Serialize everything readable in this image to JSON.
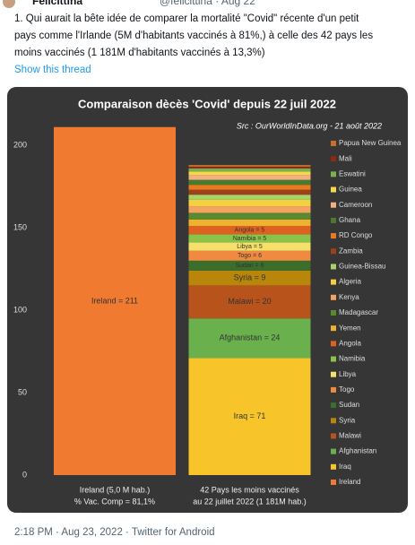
{
  "header": {
    "name": "Felicittina",
    "handle": "@felicittina · Aug 22"
  },
  "tweet": {
    "lines": [
      "1. Qui aurait la bête idée de comparer la mortalité \"Covid\" récente d'un petit",
      "pays comme l'Irlande (5M d'habitants vaccinés à 81%,) à celle des 42 pays les",
      "moins vaccinés (1 181M d'habitants vaccinés à 13,3%)"
    ],
    "thread_link": "Show this thread"
  },
  "chart_data": {
    "type": "stacked_bar",
    "title": "Comparaison dècès 'Covid' depuis 22 juil 2022",
    "subtitle": "Src : OurWorldInData.org - 21 août 2022",
    "categories": [
      [
        "Ireland (5,0 M hab.)",
        "% Vac. Comp = 81,1%"
      ],
      [
        "42 Pays les moins vaccinés",
        "au 22 juillet 2022 (1 181M hab.)"
      ]
    ],
    "ylim": [
      0,
      220
    ],
    "yticks": [
      0,
      50,
      100,
      150,
      200
    ],
    "grid": false,
    "legend": "right",
    "series": [
      {
        "name": "Ireland",
        "color": "#f07a30",
        "values": [
          211,
          null
        ],
        "value_labels": [
          "Ireland = 211",
          null
        ]
      },
      {
        "name": "Iraq",
        "color": "#f7c52a",
        "values": [
          null,
          71
        ],
        "value_labels": [
          null,
          "Iraq = 71"
        ]
      },
      {
        "name": "Afghanistan",
        "color": "#6ab04c",
        "values": [
          null,
          24
        ],
        "value_labels": [
          null,
          "Afghanistan = 24"
        ]
      },
      {
        "name": "Malawi",
        "color": "#b9531c",
        "values": [
          null,
          20
        ],
        "value_labels": [
          null,
          "Malawi = 20"
        ]
      },
      {
        "name": "Syria",
        "color": "#b8860b",
        "values": [
          null,
          9
        ],
        "value_labels": [
          null,
          "Syria = 9"
        ]
      },
      {
        "name": "Sudan",
        "color": "#3b6e2a",
        "values": [
          null,
          6
        ],
        "value_labels": [
          null,
          "Sudan = 6"
        ]
      },
      {
        "name": "Togo",
        "color": "#f08a40",
        "values": [
          null,
          6
        ],
        "value_labels": [
          null,
          "Togo = 6"
        ]
      },
      {
        "name": "Libya",
        "color": "#f7e06a",
        "values": [
          null,
          5
        ],
        "value_labels": [
          null,
          "Libya = 5"
        ]
      },
      {
        "name": "Namibia",
        "color": "#8bc34a",
        "values": [
          null,
          5
        ],
        "value_labels": [
          null,
          "Namibia = 5"
        ]
      },
      {
        "name": "Angola",
        "color": "#e06020",
        "values": [
          null,
          5
        ],
        "value_labels": [
          null,
          "Angola = 5"
        ]
      },
      {
        "name": "Yemen",
        "color": "#f0b030",
        "values": [
          null,
          4
        ]
      },
      {
        "name": "Madagascar",
        "color": "#5a8a30",
        "values": [
          null,
          4
        ]
      },
      {
        "name": "Kenya",
        "color": "#f4a460",
        "values": [
          null,
          4
        ]
      },
      {
        "name": "Algeria",
        "color": "#f5d040",
        "values": [
          null,
          4
        ]
      },
      {
        "name": "Guinea-Bissau",
        "color": "#a5d46a",
        "values": [
          null,
          3
        ]
      },
      {
        "name": "Zambia",
        "color": "#a0401a",
        "values": [
          null,
          3
        ]
      },
      {
        "name": "RD Congo",
        "color": "#e87a20",
        "values": [
          null,
          3
        ]
      },
      {
        "name": "Ghana",
        "color": "#4a7a30",
        "values": [
          null,
          3
        ]
      },
      {
        "name": "Cameroon",
        "color": "#f4b080",
        "values": [
          null,
          3
        ]
      },
      {
        "name": "Guinea",
        "color": "#f7d84a",
        "values": [
          null,
          2
        ]
      },
      {
        "name": "Eswatini",
        "color": "#7ab050",
        "values": [
          null,
          2
        ]
      },
      {
        "name": "Mali",
        "color": "#8b2a10",
        "values": [
          null,
          1
        ]
      },
      {
        "name": "Papua New Guinea",
        "color": "#c8702a",
        "values": [
          null,
          1
        ]
      }
    ]
  },
  "footer": "2:18 PM · Aug 23, 2022 · Twitter for Android"
}
